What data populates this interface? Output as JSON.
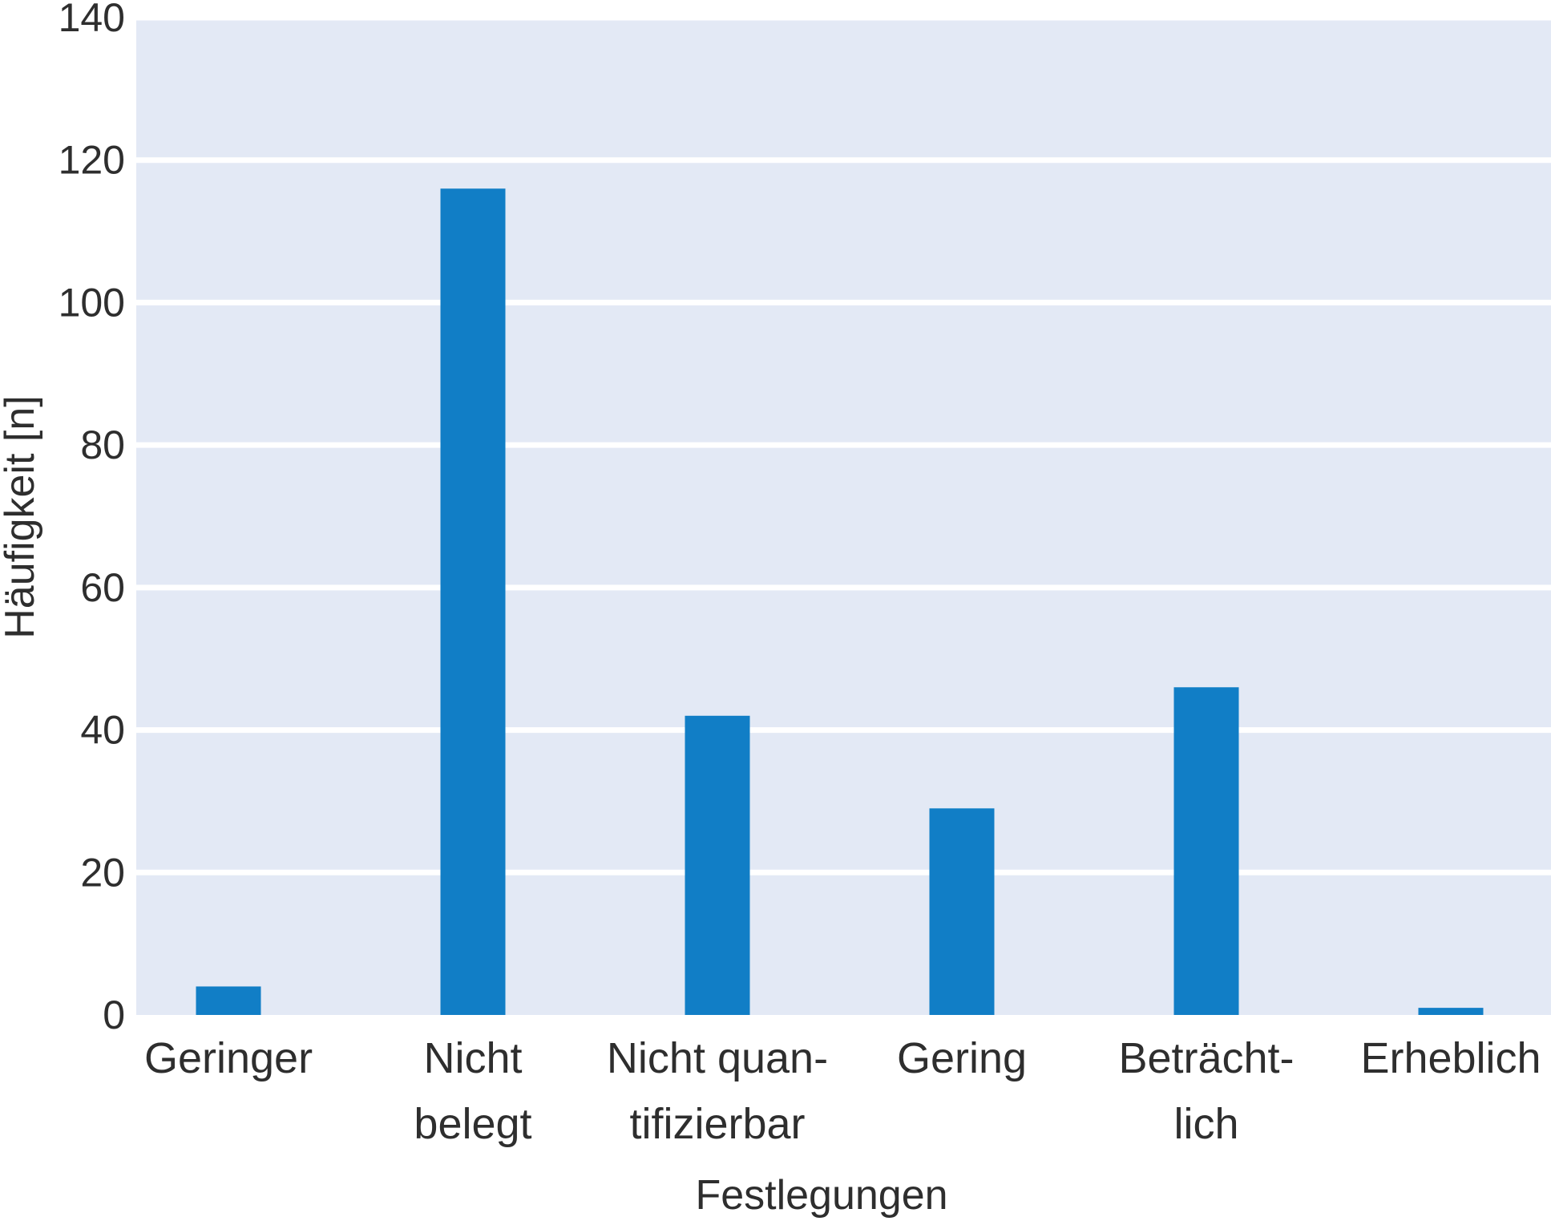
{
  "chart_data": {
    "type": "bar",
    "categories": [
      [
        "Geringer"
      ],
      [
        "Nicht",
        "belegt"
      ],
      [
        "Nicht quan-",
        "tifizierbar"
      ],
      [
        "Gering"
      ],
      [
        "Beträcht-",
        "lich"
      ],
      [
        "Erheblich"
      ]
    ],
    "values": [
      4,
      116,
      42,
      29,
      46,
      1
    ],
    "title": "",
    "xlabel": "Festlegungen",
    "ylabel": "Häufigkeit [n]",
    "ylim": [
      0,
      140
    ],
    "yticks": [
      "0",
      "20",
      "40",
      "60",
      "80",
      "100",
      "120",
      "140"
    ],
    "grid": true,
    "legend": "none",
    "colors": {
      "bar": "#117ec6",
      "plot_background": "#e3e9f5",
      "grid": "#ffffff",
      "text": "#2e2e2e"
    }
  }
}
